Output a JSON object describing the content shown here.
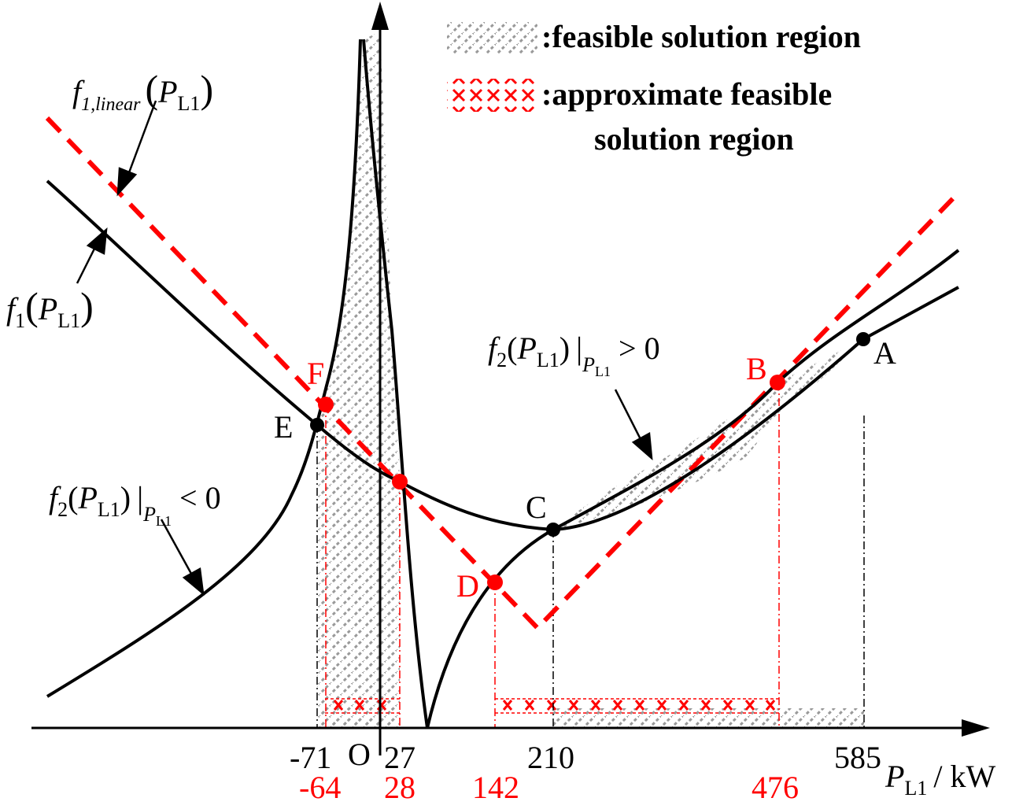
{
  "colors": {
    "black": "#000000",
    "red": "#ff0000",
    "hatch_gray": "#999999"
  },
  "legend": {
    "feasible": ":feasible solution region",
    "approx_line1": ":approximate feasible",
    "approx_line2": "solution region"
  },
  "curve_labels": {
    "f_linear": {
      "f": "f",
      "sub": "1,linear",
      "open": "(",
      "var": "P",
      "var_sub": "L1",
      "close": ")"
    },
    "f1": {
      "f": "f",
      "sub": "1",
      "open": "(",
      "var": "P",
      "var_sub": "L1",
      "close": ")"
    },
    "f2_pos": {
      "f": "f",
      "sub": "2",
      "open": "(",
      "var": "P",
      "var_sub": "L1",
      "close": ")",
      "bar": "|",
      "cond_var": "P",
      "cond_sub": "L1",
      "cond": "> 0"
    },
    "f2_neg": {
      "f": "f",
      "sub": "2",
      "open": "(",
      "var": "P",
      "var_sub": "L1",
      "close": ")",
      "bar": "|",
      "cond_var": "P",
      "cond_sub": "L1",
      "cond": "< 0"
    }
  },
  "points": {
    "A": "A",
    "B": "B",
    "C": "C",
    "D": "D",
    "E": "E",
    "F": "F",
    "O": "O"
  },
  "ticks_black": [
    "-71",
    "27",
    "210",
    "585"
  ],
  "ticks_red": [
    "-64",
    "28",
    "142",
    "476"
  ],
  "axis_label": {
    "var": "P",
    "sub": "L1",
    "unit": "/ kW"
  }
}
